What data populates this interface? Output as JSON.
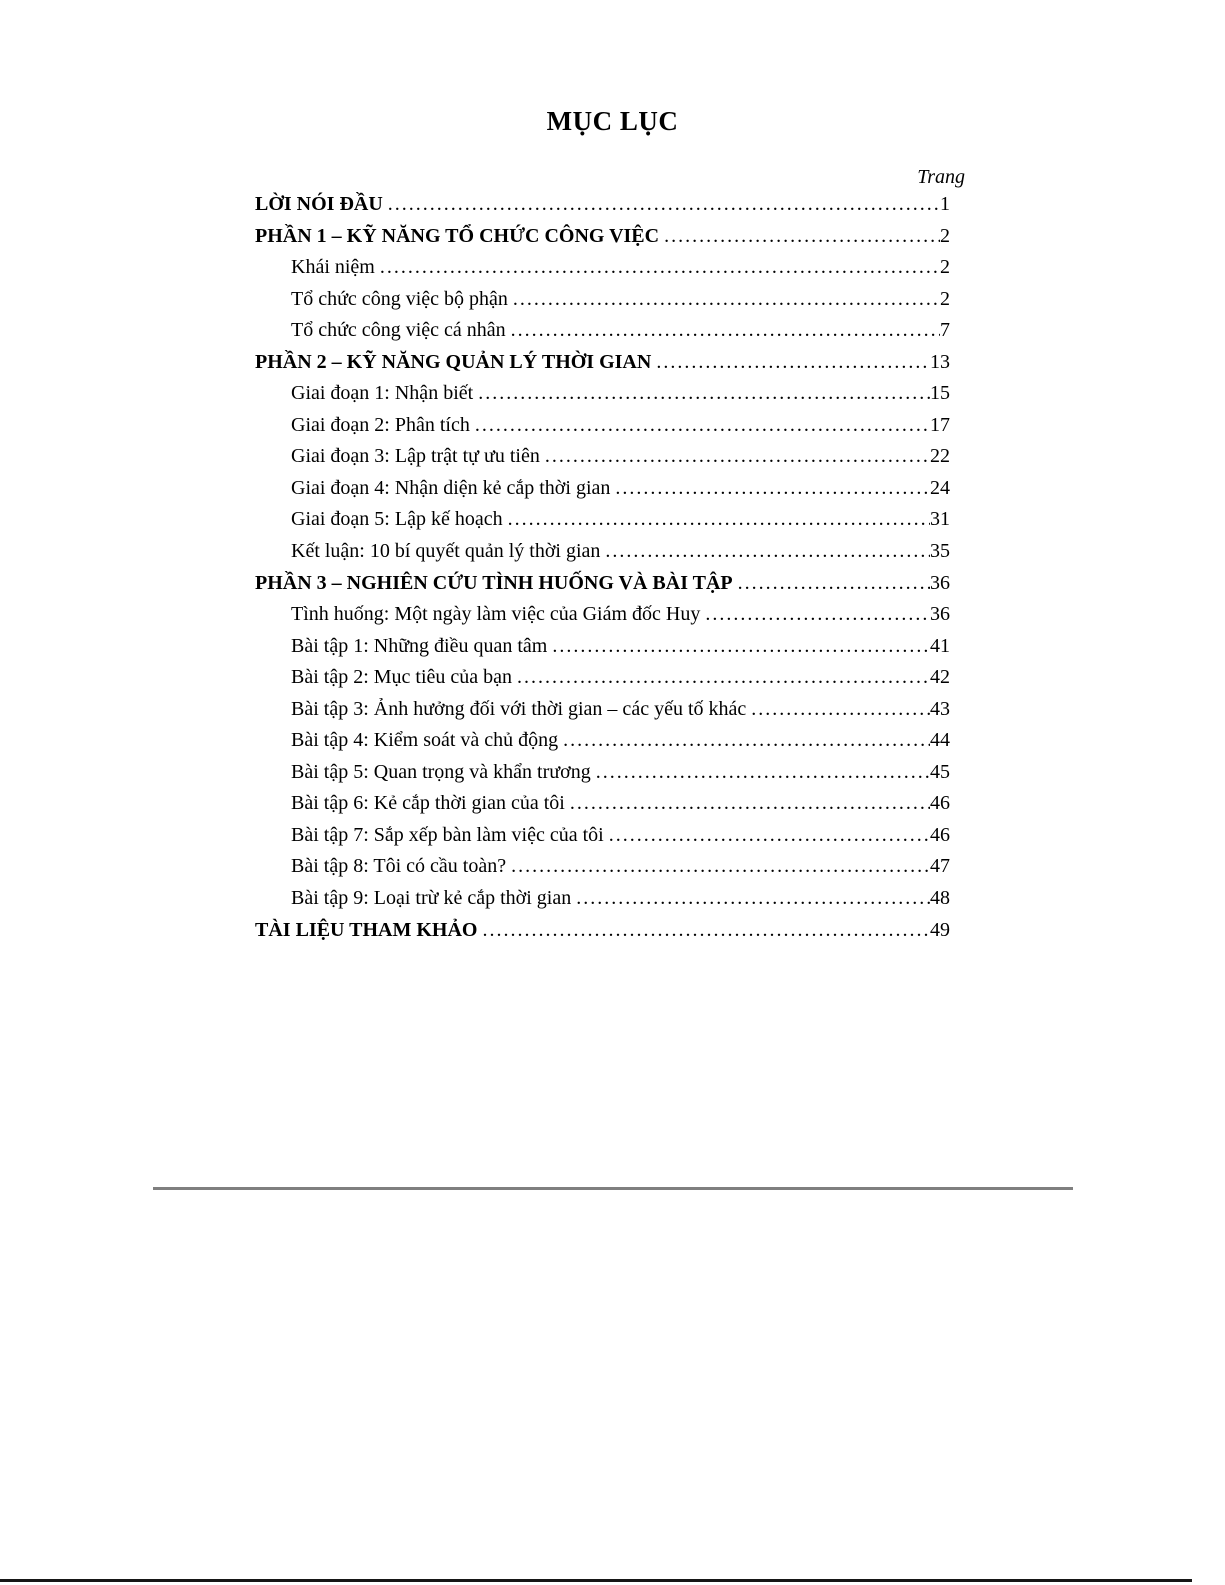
{
  "document": {
    "title": "MỤC LỤC",
    "page_column_label": "Trang",
    "toc": [
      {
        "label": "LỜI NÓI ĐẦU",
        "page": "1",
        "bold": true,
        "indent": false
      },
      {
        "label": "PHẦN 1 – KỸ NĂNG TỔ CHỨC CÔNG VIỆC",
        "page": "2",
        "bold": true,
        "indent": false
      },
      {
        "label": "Khái niệm",
        "page": "2",
        "bold": false,
        "indent": true
      },
      {
        "label": "Tổ chức công việc bộ phận",
        "page": "2",
        "bold": false,
        "indent": true
      },
      {
        "label": "Tổ chức công việc cá nhân",
        "page": "7",
        "bold": false,
        "indent": true
      },
      {
        "label": "PHẦN 2 – KỸ NĂNG QUẢN LÝ THỜI GIAN",
        "page": "13",
        "bold": true,
        "indent": false
      },
      {
        "label": "Giai đoạn 1: Nhận biết",
        "page": "15",
        "bold": false,
        "indent": true
      },
      {
        "label": "Giai đoạn 2: Phân tích",
        "page": "17",
        "bold": false,
        "indent": true
      },
      {
        "label": "Giai đoạn 3: Lập trật tự ưu tiên",
        "page": "22",
        "bold": false,
        "indent": true
      },
      {
        "label": "Giai đoạn 4: Nhận diện kẻ cắp thời gian",
        "page": "24",
        "bold": false,
        "indent": true
      },
      {
        "label": "Giai đoạn 5: Lập kế hoạch",
        "page": "31",
        "bold": false,
        "indent": true
      },
      {
        "label": "Kết luận: 10 bí quyết quản lý thời gian",
        "page": "35",
        "bold": false,
        "indent": true
      },
      {
        "label": "PHẦN 3 – NGHIÊN CỨU TÌNH HUỐNG VÀ BÀI TẬP",
        "page": "36",
        "bold": true,
        "indent": false
      },
      {
        "label": "Tình huống: Một ngày làm việc của Giám đốc Huy",
        "page": "36",
        "bold": false,
        "indent": true
      },
      {
        "label": "Bài tập 1: Những điều quan tâm",
        "page": "41",
        "bold": false,
        "indent": true
      },
      {
        "label": "Bài tập 2: Mục tiêu của bạn",
        "page": "42",
        "bold": false,
        "indent": true
      },
      {
        "label": "Bài tập 3: Ảnh hưởng đối với thời gian – các yếu tố khác",
        "page": "43",
        "bold": false,
        "indent": true
      },
      {
        "label": "Bài tập 4: Kiểm soát và chủ động",
        "page": "44",
        "bold": false,
        "indent": true
      },
      {
        "label": "Bài tập 5: Quan trọng và khẩn trương",
        "page": "45",
        "bold": false,
        "indent": true
      },
      {
        "label": "Bài tập 6: Kẻ cắp thời gian của tôi",
        "page": "46",
        "bold": false,
        "indent": true
      },
      {
        "label": "Bài tập 7: Sắp xếp bàn làm việc của tôi",
        "page": "46",
        "bold": false,
        "indent": true
      },
      {
        "label": "Bài tập 8: Tôi có cầu toàn?",
        "page": "47",
        "bold": false,
        "indent": true
      },
      {
        "label": "Bài tập 9: Loại trừ kẻ cắp thời gian",
        "page": "48",
        "bold": false,
        "indent": true
      },
      {
        "label": "TÀI LIỆU THAM KHẢO",
        "page": "49",
        "bold": true,
        "indent": false
      }
    ],
    "colors": {
      "background": "#ffffff",
      "text": "#000000",
      "rule": "#7f7f7f",
      "bottom_bar": "#161616"
    }
  }
}
